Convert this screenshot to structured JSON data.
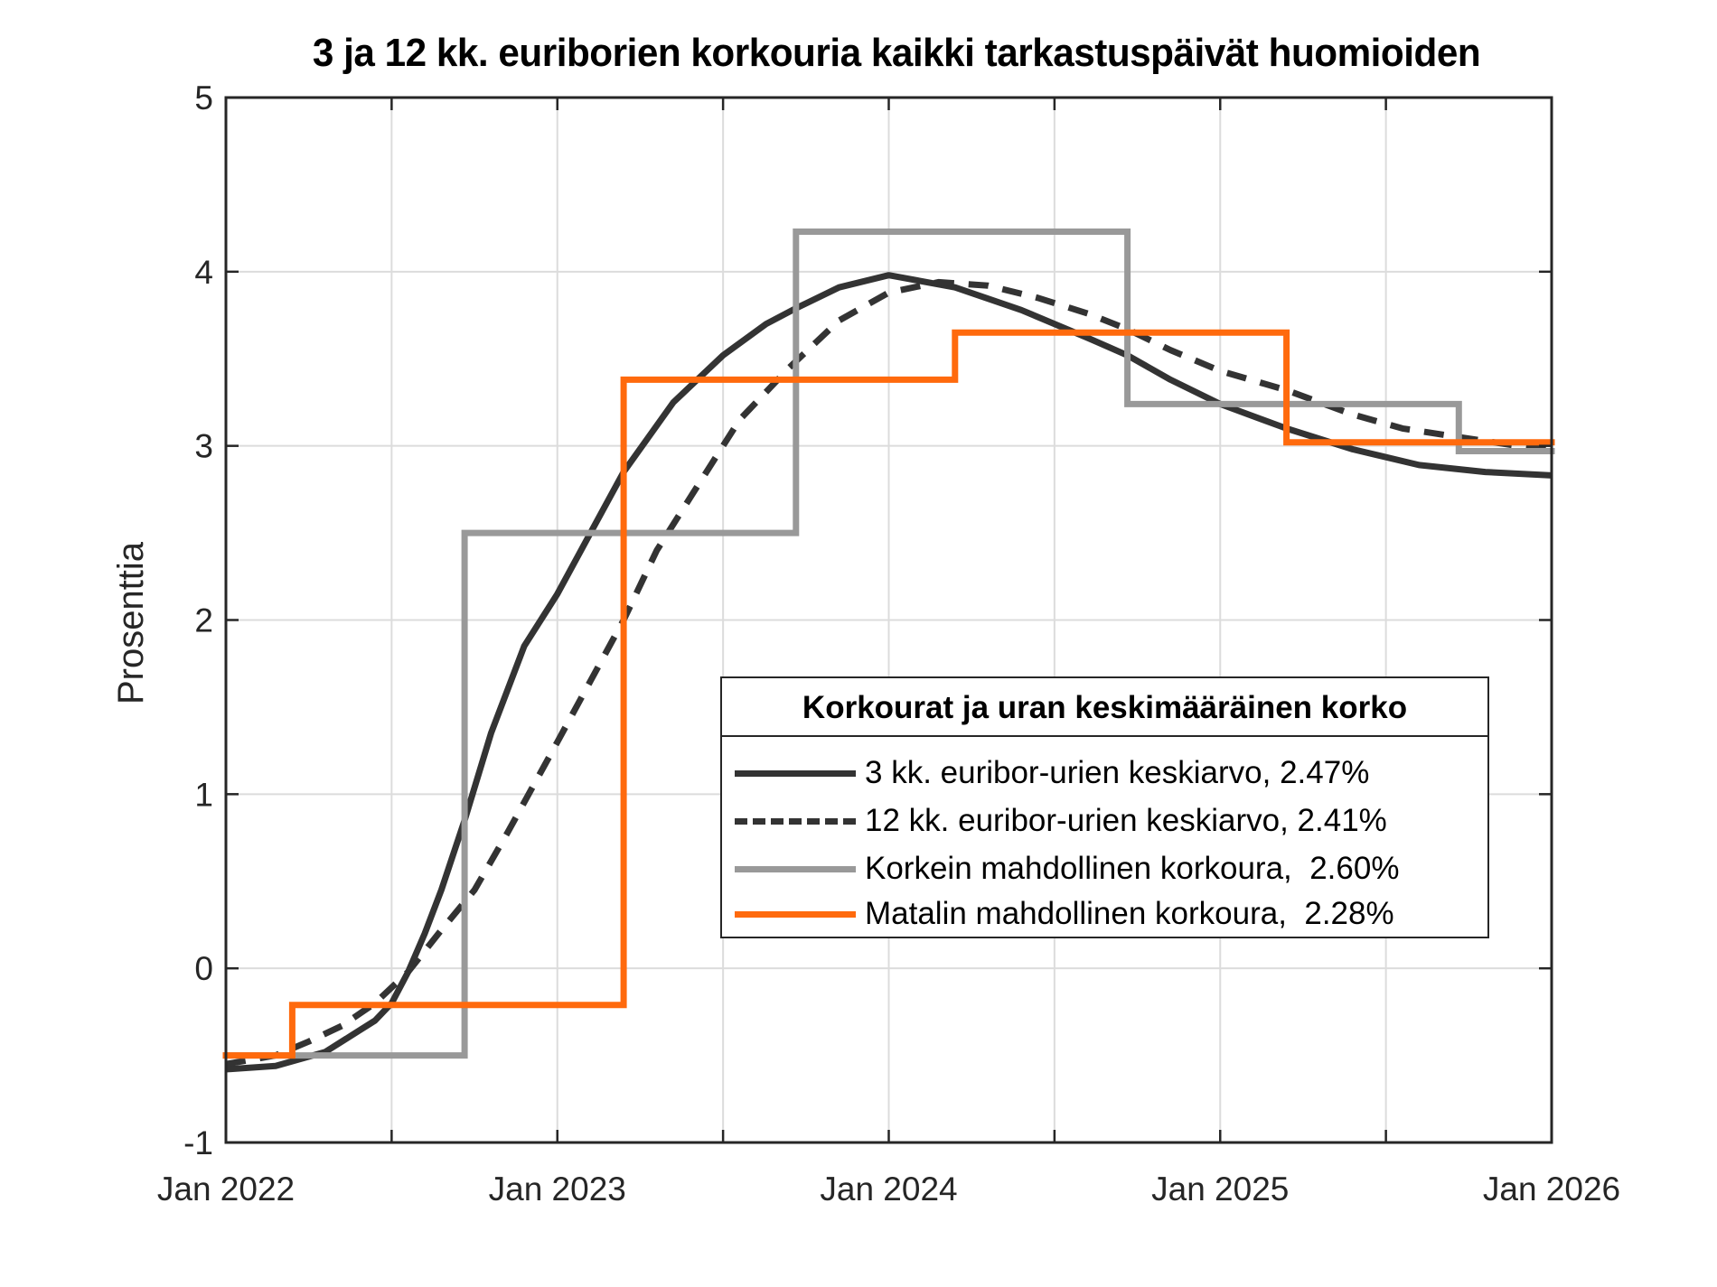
{
  "chart_data": {
    "type": "line",
    "title": "3 ja 12 kk. euriborien korkouria kaikki tarkastuspäivät huomioiden",
    "xlabel": "",
    "ylabel": "Prosenttia",
    "xlim": [
      "Jan 2022",
      "Jan 2026"
    ],
    "ylim": [
      -1,
      5
    ],
    "grid": true,
    "x_tick_labels": [
      "Jan 2022",
      "Jan 2023",
      "Jan 2024",
      "Jan 2025",
      "Jan 2026"
    ],
    "x_minor_ticks": [
      "Jul 2022",
      "Jul 2023",
      "Jul 2024",
      "Jul 2025"
    ],
    "y_tick_labels": [
      "-1",
      "0",
      "1",
      "2",
      "3",
      "4",
      "5"
    ],
    "x_units": "years since Jan 2022",
    "legend": {
      "title": "Korkourat ja uran keskimääräinen korko",
      "position": "inside lower right",
      "entries": [
        "3 kk. euribor-urien keskiarvo, 2.47%",
        "12 kk. euribor-urien keskiarvo, 2.41%",
        "Korkein mahdollinen korkoura,  2.60%",
        "Matalin mahdollinen korkoura,  2.28%"
      ]
    },
    "series": [
      {
        "name": "3 kk. euribor-urien keskiarvo, 2.47%",
        "style": "solid",
        "color": "#333333",
        "x": [
          0.0,
          0.15,
          0.3,
          0.45,
          0.5,
          0.55,
          0.6,
          0.65,
          0.72,
          0.8,
          0.9,
          1.0,
          1.1,
          1.2,
          1.35,
          1.5,
          1.63,
          1.72,
          1.85,
          2.0,
          2.2,
          2.4,
          2.6,
          2.72,
          2.85,
          3.0,
          3.2,
          3.4,
          3.6,
          3.8,
          4.0
        ],
        "y": [
          -0.58,
          -0.56,
          -0.48,
          -0.3,
          -0.2,
          -0.02,
          0.2,
          0.45,
          0.85,
          1.35,
          1.85,
          2.15,
          2.5,
          2.85,
          3.25,
          3.52,
          3.7,
          3.79,
          3.91,
          3.98,
          3.91,
          3.78,
          3.62,
          3.52,
          3.38,
          3.24,
          3.1,
          2.98,
          2.89,
          2.85,
          2.83
        ]
      },
      {
        "name": "12 kk. euribor-urien keskiarvo, 2.41%",
        "style": "dashed",
        "color": "#333333",
        "x": [
          0.0,
          0.15,
          0.25,
          0.35,
          0.45,
          0.55,
          0.65,
          0.75,
          0.85,
          1.0,
          1.1,
          1.2,
          1.3,
          1.4,
          1.55,
          1.7,
          1.85,
          2.0,
          2.15,
          2.3,
          2.45,
          2.6,
          2.72,
          2.85,
          3.0,
          3.2,
          3.4,
          3.55,
          3.72,
          3.9,
          4.0
        ],
        "y": [
          -0.55,
          -0.5,
          -0.42,
          -0.33,
          -0.2,
          -0.02,
          0.22,
          0.45,
          0.78,
          1.3,
          1.65,
          2.0,
          2.4,
          2.7,
          3.15,
          3.45,
          3.72,
          3.88,
          3.94,
          3.92,
          3.85,
          3.76,
          3.67,
          3.55,
          3.43,
          3.32,
          3.18,
          3.1,
          3.05,
          3.0,
          2.98
        ]
      },
      {
        "name": "Korkein mahdollinen korkoura,  2.60%",
        "style": "step",
        "color": "#999999",
        "x": [
          0.0,
          0.72,
          0.72,
          1.72,
          1.72,
          2.72,
          2.72,
          3.72,
          3.72,
          4.0
        ],
        "y": [
          -0.5,
          -0.5,
          2.5,
          2.5,
          4.23,
          4.23,
          3.24,
          3.24,
          2.97,
          2.97
        ]
      },
      {
        "name": "Matalin mahdollinen korkoura,  2.28%",
        "style": "step",
        "color": "#FF6A0D",
        "x": [
          0.0,
          0.2,
          0.2,
          1.2,
          1.2,
          2.2,
          2.2,
          3.2,
          3.2,
          4.0
        ],
        "y": [
          -0.5,
          -0.5,
          -0.21,
          -0.21,
          3.38,
          3.38,
          3.65,
          3.65,
          3.02,
          3.02
        ]
      }
    ]
  },
  "colors": {
    "axis": "#262626",
    "grid": "#dcdcdc",
    "orange": "#FF6A0D",
    "gray": "#999999",
    "dark": "#333333"
  }
}
